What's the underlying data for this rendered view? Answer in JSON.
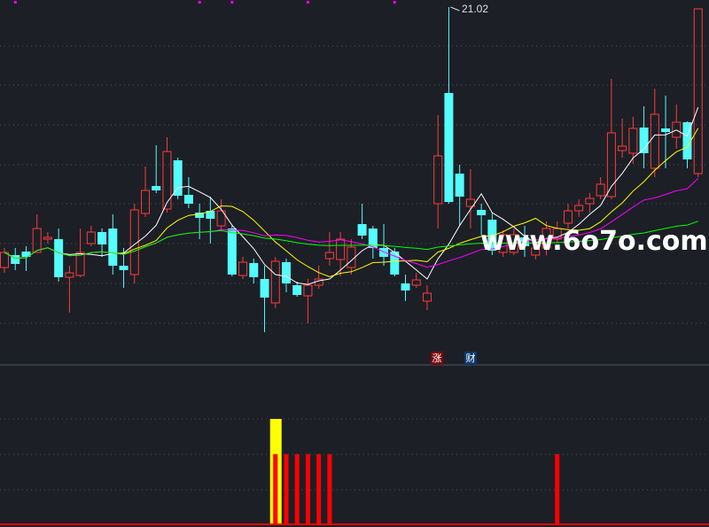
{
  "chart_data": {
    "type": "candlestick",
    "high_label": "21.02",
    "grid": true,
    "colors": {
      "up": "#ff3b3b",
      "down": "#54fcfc",
      "ma5": "#ffffff",
      "ma10": "#ffff00",
      "ma20": "#ff00ff",
      "ma60": "#00ff00",
      "background": "#1c1f26"
    },
    "ma_periods": [
      5,
      10,
      20,
      60
    ],
    "candles": [
      [
        18.08,
        18.3,
        18.02,
        18.25
      ],
      [
        18.22,
        18.3,
        18.05,
        18.12
      ],
      [
        18.26,
        18.32,
        18.04,
        18.2
      ],
      [
        18.25,
        18.68,
        18.25,
        18.52
      ],
      [
        18.4,
        18.48,
        18.35,
        18.42
      ],
      [
        18.4,
        18.52,
        17.92,
        17.97
      ],
      [
        17.97,
        18.1,
        17.57,
        18.02
      ],
      [
        17.99,
        18.52,
        17.97,
        18.25
      ],
      [
        18.35,
        18.55,
        18.32,
        18.48
      ],
      [
        18.48,
        18.52,
        18.2,
        18.34
      ],
      [
        18.52,
        18.68,
        18.0,
        18.1
      ],
      [
        18.1,
        18.3,
        17.85,
        18.05
      ],
      [
        18.0,
        18.8,
        17.9,
        18.73
      ],
      [
        18.69,
        19.22,
        18.65,
        18.95
      ],
      [
        19.0,
        19.46,
        18.92,
        18.95
      ],
      [
        18.74,
        19.55,
        18.7,
        19.39
      ],
      [
        19.29,
        19.32,
        18.85,
        18.89
      ],
      [
        18.9,
        19.1,
        18.75,
        18.8
      ],
      [
        18.7,
        18.8,
        18.4,
        18.64
      ],
      [
        18.72,
        18.88,
        18.35,
        18.63
      ],
      [
        18.55,
        18.85,
        18.5,
        18.72
      ],
      [
        18.52,
        18.55,
        17.98,
        18.0
      ],
      [
        17.99,
        18.2,
        17.95,
        18.14
      ],
      [
        18.13,
        18.18,
        17.9,
        17.97
      ],
      [
        17.95,
        18.1,
        17.35,
        17.74
      ],
      [
        17.68,
        18.2,
        17.62,
        18.15
      ],
      [
        18.14,
        18.18,
        17.8,
        17.9
      ],
      [
        17.88,
        17.92,
        17.75,
        17.77
      ],
      [
        17.76,
        17.95,
        17.45,
        17.88
      ],
      [
        17.88,
        18.1,
        17.84,
        17.95
      ],
      [
        18.18,
        18.48,
        18.1,
        18.25
      ],
      [
        18.17,
        18.48,
        17.98,
        18.4
      ],
      [
        18.08,
        18.4,
        18.0,
        18.31
      ],
      [
        18.57,
        18.8,
        18.4,
        18.44
      ],
      [
        18.52,
        18.55,
        18.18,
        18.3
      ],
      [
        18.3,
        18.57,
        18.1,
        18.2
      ],
      [
        18.26,
        18.3,
        17.98,
        18.0
      ],
      [
        17.9,
        18.0,
        17.7,
        17.82
      ],
      [
        17.88,
        18.02,
        17.85,
        17.94
      ],
      [
        17.7,
        17.88,
        17.6,
        17.79
      ],
      [
        18.8,
        19.8,
        18.52,
        19.34
      ],
      [
        20.05,
        21.02,
        18.8,
        18.82
      ],
      [
        19.14,
        19.24,
        18.55,
        18.88
      ],
      [
        18.77,
        19.19,
        18.52,
        18.85
      ],
      [
        18.73,
        18.8,
        18.45,
        18.67
      ],
      [
        18.62,
        18.7,
        18.22,
        18.27
      ],
      [
        18.25,
        18.5,
        18.2,
        18.45
      ],
      [
        18.25,
        18.52,
        18.22,
        18.45
      ],
      [
        18.42,
        18.55,
        18.2,
        18.32
      ],
      [
        18.22,
        18.4,
        18.17,
        18.3
      ],
      [
        18.3,
        18.6,
        18.22,
        18.52
      ],
      [
        18.4,
        18.6,
        18.35,
        18.52
      ],
      [
        18.58,
        18.8,
        18.52,
        18.72
      ],
      [
        18.72,
        18.85,
        18.65,
        18.78
      ],
      [
        18.8,
        18.92,
        18.7,
        18.86
      ],
      [
        18.89,
        19.1,
        18.85,
        19.02
      ],
      [
        18.88,
        20.21,
        18.85,
        19.6
      ],
      [
        19.4,
        19.76,
        19.32,
        19.45
      ],
      [
        19.37,
        19.78,
        19.25,
        19.65
      ],
      [
        19.66,
        19.9,
        19.2,
        19.37
      ],
      [
        19.2,
        20.1,
        19.1,
        19.81
      ],
      [
        19.65,
        20.02,
        19.2,
        19.61
      ],
      [
        19.55,
        19.92,
        19.42,
        19.72
      ],
      [
        19.72,
        19.73,
        19.2,
        19.3
      ],
      [
        19.14,
        21.0,
        19.1,
        21.0
      ]
    ],
    "markers": [
      1,
      18,
      21,
      28,
      36
    ],
    "indicator": {
      "ylim": [
        0,
        3
      ],
      "red_bars": {
        "indices": [
          25,
          26,
          27,
          28,
          29,
          30,
          51
        ],
        "value": 2
      },
      "yellow_bars": {
        "indices": [
          25
        ],
        "value": 3
      }
    }
  },
  "labels": {
    "zhang": "涨",
    "cai": "财"
  },
  "watermark": "www.6o7o.com"
}
